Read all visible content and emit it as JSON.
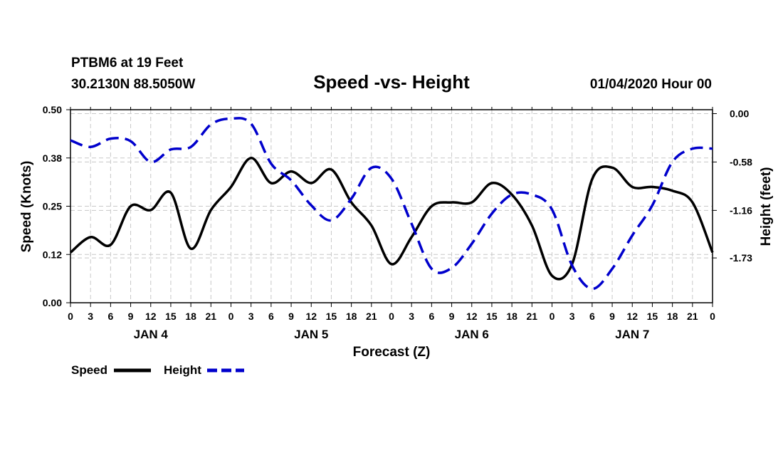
{
  "header": {
    "station": "PTBM6 at 19 Feet",
    "coords": "30.2130N 88.5050W",
    "title": "Speed -vs- Height",
    "datetime": "01/04/2020 Hour 00"
  },
  "legend": {
    "speed_label": "Speed",
    "height_label": "Height"
  },
  "colors": {
    "speed": "#000000",
    "height": "#0000cc"
  },
  "chart_data": {
    "type": "line",
    "title": "Speed -vs- Height",
    "xlabel": "Forecast (Z)",
    "ylabel_left": "Speed (Knots)",
    "ylabel_right": "Height (feet)",
    "xlim": [
      0,
      96
    ],
    "ylim_left": [
      0.0,
      0.5
    ],
    "ylim_right": [
      -2.267,
      0.047
    ],
    "x_ticks": [
      0,
      3,
      6,
      9,
      12,
      15,
      18,
      21,
      24,
      27,
      30,
      33,
      36,
      39,
      42,
      45,
      48,
      51,
      54,
      57,
      60,
      63,
      66,
      69,
      72,
      75,
      78,
      81,
      84,
      87,
      90,
      93,
      96
    ],
    "x_tick_labels": [
      "0",
      "3",
      "6",
      "9",
      "12",
      "15",
      "18",
      "21",
      "0",
      "3",
      "6",
      "9",
      "12",
      "15",
      "18",
      "21",
      "0",
      "3",
      "6",
      "9",
      "12",
      "15",
      "18",
      "21",
      "0",
      "3",
      "6",
      "9",
      "12",
      "15",
      "18",
      "21",
      "0"
    ],
    "day_labels": [
      {
        "x": 12,
        "label": "JAN 4"
      },
      {
        "x": 36,
        "label": "JAN 5"
      },
      {
        "x": 60,
        "label": "JAN 6"
      },
      {
        "x": 84,
        "label": "JAN 7"
      }
    ],
    "y_ticks_left": [
      "0.00",
      "0.12",
      "0.25",
      "0.38",
      "0.50"
    ],
    "y_tick_values_left": [
      0.0,
      0.125,
      0.25,
      0.375,
      0.5
    ],
    "y_ticks_right": [
      "0.00",
      "-0.58",
      "-1.16",
      "-1.73"
    ],
    "y_tick_values_right": [
      0.0,
      -0.58,
      -1.16,
      -1.73
    ],
    "grid": true,
    "series": [
      {
        "name": "Speed",
        "axis": "left",
        "style": "solid",
        "x": [
          0,
          3,
          6,
          9,
          12,
          15,
          18,
          21,
          24,
          27,
          30,
          33,
          36,
          39,
          42,
          45,
          48,
          51,
          54,
          57,
          60,
          63,
          66,
          69,
          72,
          75,
          78,
          81,
          84,
          87,
          90,
          93,
          96
        ],
        "values": [
          0.13,
          0.17,
          0.15,
          0.25,
          0.24,
          0.285,
          0.14,
          0.24,
          0.3,
          0.375,
          0.31,
          0.34,
          0.31,
          0.345,
          0.26,
          0.2,
          0.1,
          0.17,
          0.25,
          0.26,
          0.26,
          0.31,
          0.28,
          0.2,
          0.07,
          0.1,
          0.32,
          0.35,
          0.3,
          0.3,
          0.29,
          0.26,
          0.13
        ]
      },
      {
        "name": "Height",
        "axis": "right",
        "style": "dashed",
        "x": [
          0,
          3,
          6,
          9,
          12,
          15,
          18,
          21,
          24,
          27,
          30,
          33,
          36,
          39,
          42,
          45,
          48,
          51,
          54,
          57,
          60,
          63,
          66,
          69,
          72,
          75,
          78,
          81,
          84,
          87,
          90,
          93,
          96
        ],
        "values": [
          -0.32,
          -0.4,
          -0.3,
          -0.33,
          -0.58,
          -0.43,
          -0.4,
          -0.13,
          -0.06,
          -0.12,
          -0.6,
          -0.8,
          -1.1,
          -1.28,
          -1.02,
          -0.65,
          -0.78,
          -1.32,
          -1.86,
          -1.85,
          -1.56,
          -1.2,
          -0.97,
          -0.97,
          -1.15,
          -1.82,
          -2.1,
          -1.86,
          -1.46,
          -1.1,
          -0.58,
          -0.42,
          -0.42
        ]
      }
    ]
  }
}
